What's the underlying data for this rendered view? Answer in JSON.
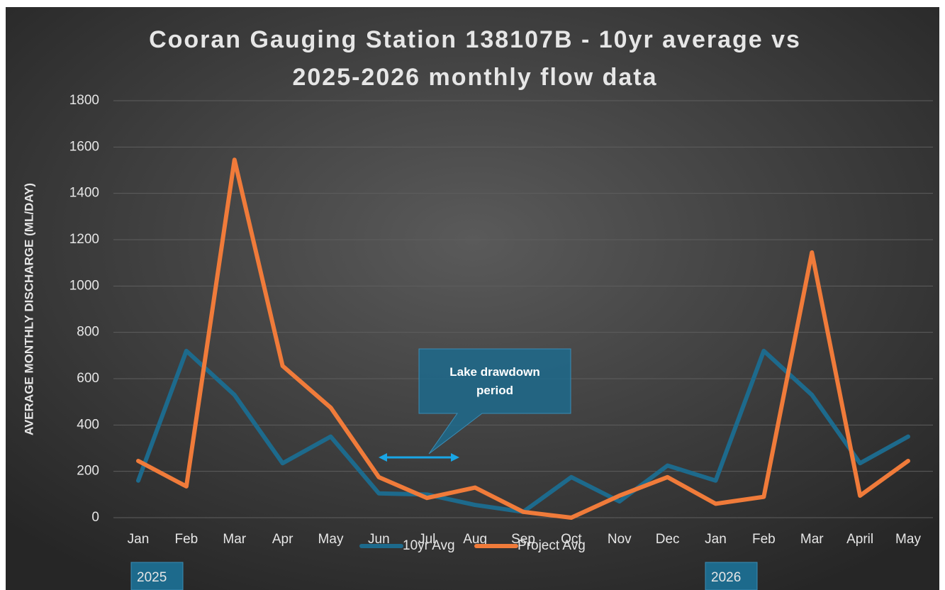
{
  "chart_data": {
    "type": "line",
    "title": [
      "Cooran Gauging Station 138107B - 10yr average vs",
      "2025-2026 monthly flow data"
    ],
    "y_axis_label": "AVERAGE MONTHLY DISCHARGE (ML/DAY)",
    "categories": [
      "Jan",
      "Feb",
      "Mar",
      "Apr",
      "May",
      "Jun",
      "Jul",
      "Aug",
      "Sep",
      "Oct",
      "Nov",
      "Dec",
      "Jan",
      "Feb",
      "Mar",
      "April",
      "May"
    ],
    "series": [
      {
        "name": "10yr Avg",
        "color": "#1d6a8c",
        "values": [
          160,
          720,
          530,
          235,
          350,
          105,
          100,
          55,
          25,
          175,
          70,
          225,
          160,
          720,
          530,
          235,
          350
        ]
      },
      {
        "name": "Project Avg",
        "color": "#f07b3a",
        "values": [
          245,
          135,
          1545,
          655,
          475,
          175,
          85,
          130,
          25,
          0,
          95,
          175,
          60,
          90,
          1145,
          95,
          245
        ]
      }
    ],
    "ylim": [
      0,
      1800
    ],
    "yticks": [
      0,
      200,
      400,
      600,
      800,
      1000,
      1200,
      1400,
      1600,
      1800
    ],
    "grid": true,
    "legend": "bottom",
    "annotations": [
      "Lake drawdown period"
    ],
    "year_labels": [
      "2025",
      "2026"
    ]
  }
}
